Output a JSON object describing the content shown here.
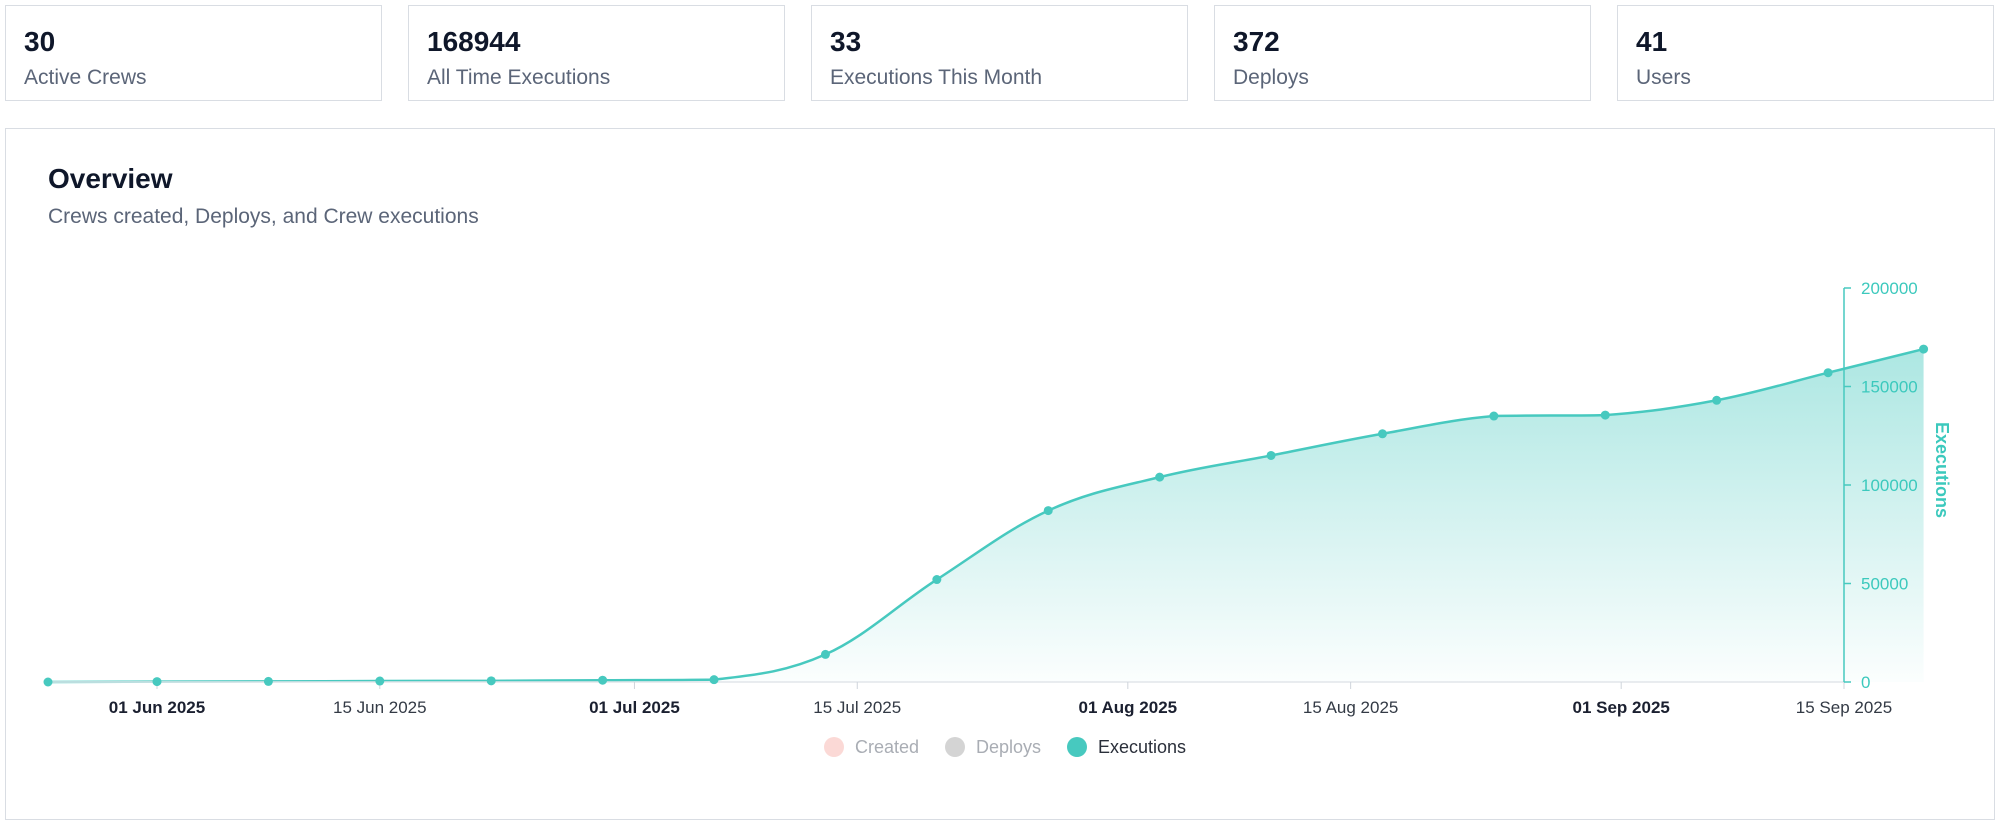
{
  "stats": [
    {
      "value": "30",
      "label": "Active Crews"
    },
    {
      "value": "168944",
      "label": "All Time Executions"
    },
    {
      "value": "33",
      "label": "Executions This Month"
    },
    {
      "value": "372",
      "label": "Deploys"
    },
    {
      "value": "41",
      "label": "Users"
    }
  ],
  "overview": {
    "title": "Overview",
    "subtitle": "Crews created, Deploys, and Crew executions"
  },
  "colors": {
    "executions": "#47c9bf",
    "created": "#fbd9d6",
    "deploys": "#d4d4d4"
  },
  "chart_data": {
    "type": "area",
    "title": "Overview",
    "ylabel": "Executions",
    "ylim": [
      0,
      200000
    ],
    "yticks": [
      "200000",
      "150000",
      "100000",
      "50000",
      "0"
    ],
    "xrange_days": [
      -4,
      116
    ],
    "xticks": [
      {
        "label": "01 Jun 2025",
        "day": 0,
        "major": true
      },
      {
        "label": "15 Jun 2025",
        "day": 14,
        "major": false
      },
      {
        "label": "01 Jul 2025",
        "day": 30,
        "major": true
      },
      {
        "label": "15 Jul 2025",
        "day": 44,
        "major": false
      },
      {
        "label": "01 Aug 2025",
        "day": 61,
        "major": true
      },
      {
        "label": "15 Aug 2025",
        "day": 75,
        "major": false
      },
      {
        "label": "01 Sep 2025",
        "day": 92,
        "major": true
      },
      {
        "label": "15 Sep 2025",
        "day": 106,
        "major": false
      }
    ],
    "series": [
      {
        "name": "Executions",
        "days": [
          -7,
          0,
          7,
          14,
          21,
          28,
          35,
          42,
          49,
          56,
          63,
          70,
          77,
          84,
          91,
          98,
          105,
          111
        ],
        "values": [
          0,
          200,
          300,
          500,
          600,
          900,
          1200,
          14000,
          52000,
          87000,
          104000,
          115000,
          126000,
          135000,
          135500,
          143000,
          157000,
          169000
        ]
      }
    ],
    "legend": [
      {
        "name": "Created",
        "active": false
      },
      {
        "name": "Deploys",
        "active": false
      },
      {
        "name": "Executions",
        "active": true
      }
    ]
  }
}
